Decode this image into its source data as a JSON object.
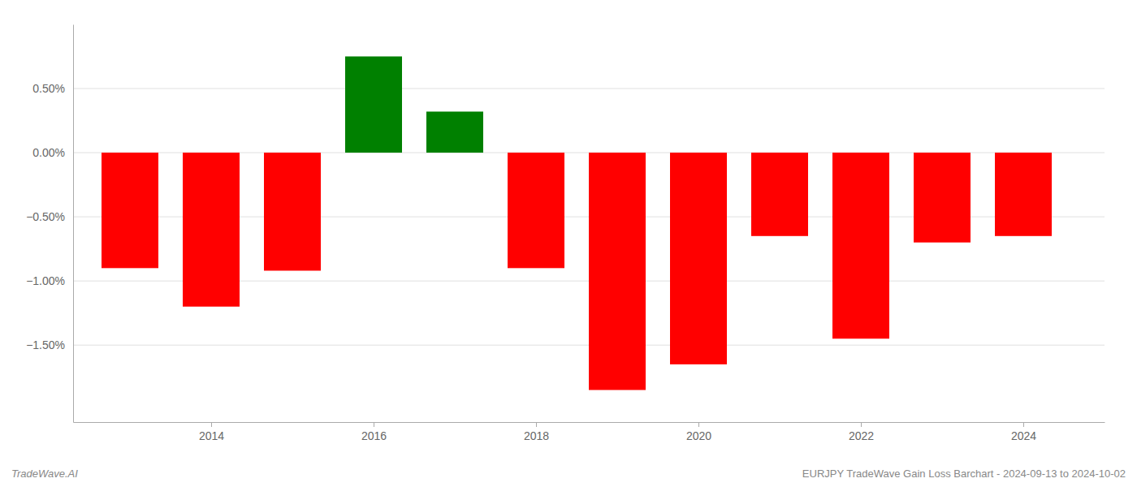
{
  "chart_data": {
    "type": "bar",
    "x": [
      2013,
      2014,
      2015,
      2016,
      2017,
      2018,
      2019,
      2020,
      2021,
      2022,
      2023,
      2024
    ],
    "values": [
      -0.9,
      -1.2,
      -0.92,
      0.75,
      0.32,
      -0.9,
      -1.85,
      -1.65,
      -0.65,
      -1.45,
      -0.7,
      -0.65
    ],
    "colors": [
      "#ff0000",
      "#ff0000",
      "#ff0000",
      "#008000",
      "#008000",
      "#ff0000",
      "#ff0000",
      "#ff0000",
      "#ff0000",
      "#ff0000",
      "#ff0000",
      "#ff0000"
    ],
    "xlim": [
      2012.3,
      2025.0
    ],
    "xticks": [
      2014,
      2016,
      2018,
      2020,
      2022,
      2024
    ],
    "ylim": [
      -2.1,
      1.0
    ],
    "yticks": [
      {
        "value": -1.5,
        "label": "−1.50%"
      },
      {
        "value": -1.0,
        "label": "−1.00%"
      },
      {
        "value": -0.5,
        "label": "−0.50%"
      },
      {
        "value": 0.0,
        "label": "0.00%"
      },
      {
        "value": 0.5,
        "label": "0.50%"
      }
    ],
    "grid": true,
    "annotations": [
      "TradeWave.AI",
      "EURJPY TradeWave Gain Loss Barchart - 2024-09-13 to 2024-10-02"
    ]
  }
}
